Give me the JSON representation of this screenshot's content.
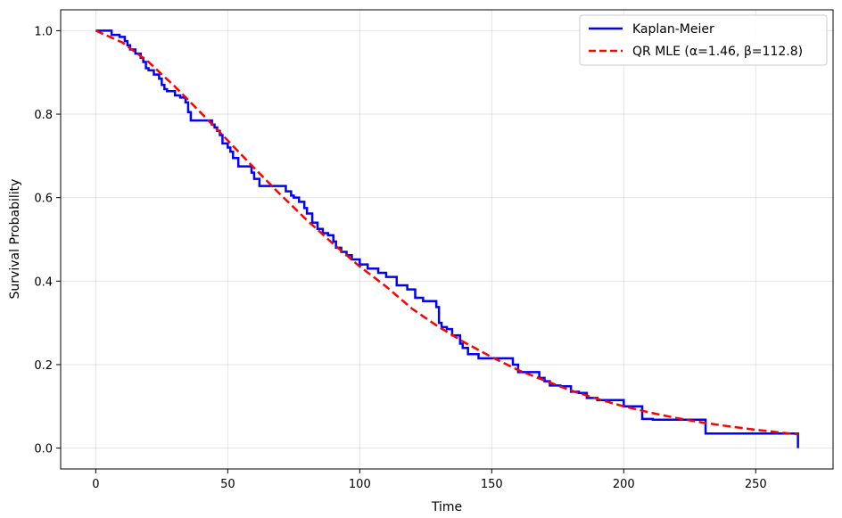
{
  "chart_data": {
    "type": "line",
    "xlabel": "Time",
    "ylabel": "Survival Probability",
    "xlim": [
      -13.3,
      279.3
    ],
    "ylim": [
      -0.05,
      1.05
    ],
    "xticks": [
      0,
      50,
      100,
      150,
      200,
      250
    ],
    "yticks": [
      0.0,
      0.2,
      0.4,
      0.6,
      0.8,
      1.0
    ],
    "xtick_labels": [
      "0",
      "50",
      "100",
      "150",
      "200",
      "250"
    ],
    "ytick_labels": [
      "0.0",
      "0.2",
      "0.4",
      "0.6",
      "0.8",
      "1.0"
    ],
    "grid": true,
    "legend_position": "top-right",
    "series": [
      {
        "name": "Kaplan-Meier",
        "style": "step",
        "color": "#0000ff",
        "x": [
          0,
          6,
          9,
          11,
          12,
          13,
          15,
          17,
          18,
          19,
          20,
          22,
          24,
          25,
          26,
          27,
          30,
          32,
          34,
          35,
          36,
          40,
          44,
          45,
          46,
          47,
          48,
          50,
          51,
          52,
          54,
          59,
          60,
          62,
          70,
          72,
          74,
          75,
          77,
          79,
          80,
          82,
          84,
          86,
          88,
          90,
          91,
          93,
          95,
          97,
          100,
          103,
          107,
          110,
          114,
          118,
          121,
          124,
          129,
          130,
          131,
          133,
          135,
          138,
          139,
          141,
          145,
          150,
          155,
          158,
          160,
          163,
          168,
          170,
          172,
          176,
          180,
          183,
          186,
          190,
          195,
          200,
          207,
          211,
          220,
          231,
          266
        ],
        "y": [
          1.0,
          0.99,
          0.985,
          0.975,
          0.965,
          0.955,
          0.945,
          0.935,
          0.925,
          0.91,
          0.905,
          0.895,
          0.885,
          0.87,
          0.86,
          0.855,
          0.845,
          0.84,
          0.828,
          0.805,
          0.785,
          0.785,
          0.775,
          0.768,
          0.76,
          0.75,
          0.73,
          0.72,
          0.71,
          0.695,
          0.675,
          0.66,
          0.645,
          0.628,
          0.628,
          0.615,
          0.605,
          0.6,
          0.59,
          0.575,
          0.562,
          0.54,
          0.525,
          0.515,
          0.51,
          0.495,
          0.48,
          0.47,
          0.462,
          0.452,
          0.44,
          0.43,
          0.42,
          0.41,
          0.39,
          0.38,
          0.36,
          0.352,
          0.338,
          0.3,
          0.29,
          0.285,
          0.27,
          0.25,
          0.24,
          0.225,
          0.215,
          0.215,
          0.215,
          0.2,
          0.182,
          0.182,
          0.168,
          0.16,
          0.15,
          0.148,
          0.135,
          0.132,
          0.12,
          0.115,
          0.115,
          0.1,
          0.07,
          0.068,
          0.068,
          0.035,
          0.0
        ]
      },
      {
        "name": "QR MLE (α=1.46, β=112.8)",
        "style": "dashed",
        "color": "#ff0000",
        "x": [
          0,
          10,
          20,
          30,
          40,
          50,
          60,
          70,
          80,
          90,
          100,
          110,
          120,
          130,
          140,
          150,
          160,
          170,
          180,
          190,
          200,
          210,
          220,
          230,
          240,
          250,
          260,
          266
        ],
        "y": [
          1.0,
          0.972,
          0.925,
          0.866,
          0.802,
          0.737,
          0.671,
          0.607,
          0.546,
          0.489,
          0.435,
          0.387,
          0.333,
          0.29,
          0.252,
          0.218,
          0.187,
          0.162,
          0.138,
          0.118,
          0.1,
          0.085,
          0.072,
          0.061,
          0.052,
          0.044,
          0.037,
          0.033
        ]
      }
    ]
  }
}
